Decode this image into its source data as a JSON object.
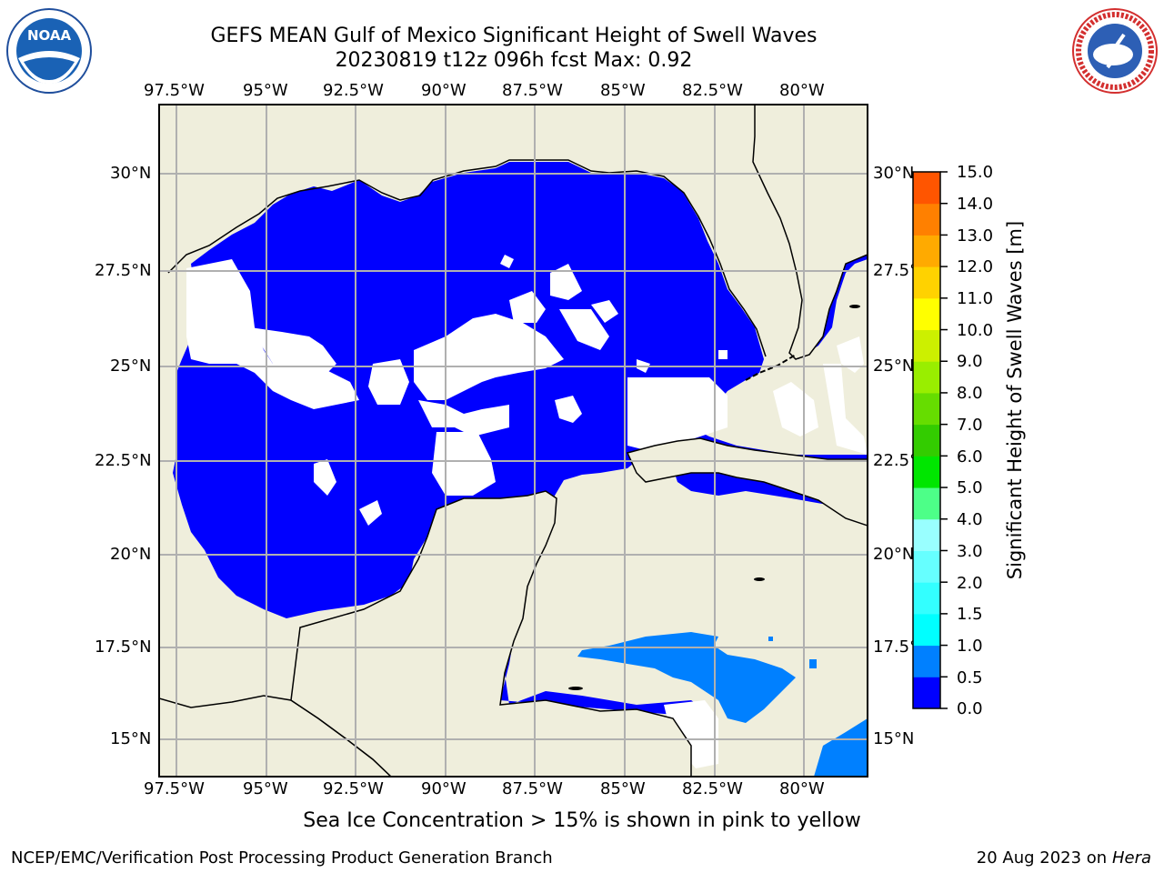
{
  "title": {
    "line1": "GEFS MEAN Gulf of Mexico Significant Height of Swell Waves",
    "line2": "20230819 t12z 096h fcst   Max: 0.92"
  },
  "map": {
    "lon_labels": [
      "97.5°W",
      "95°W",
      "92.5°W",
      "90°W",
      "87.5°W",
      "85°W",
      "82.5°W",
      "80°W"
    ],
    "lat_labels": [
      "30°N",
      "27.5°N",
      "25°N",
      "22.5°N",
      "20°N",
      "17.5°N",
      "15°N"
    ],
    "colors": {
      "land": "#efeedc",
      "water_low": "#0000ff",
      "water_mid": "#0080ff",
      "grid": "#b0b0b0"
    }
  },
  "colorbar": {
    "label": "Significant Height of Swell Waves [m]",
    "ticks": [
      "15.0",
      "14.0",
      "13.0",
      "12.0",
      "11.0",
      "10.0",
      "9.0",
      "8.0",
      "7.0",
      "6.0",
      "5.0",
      "4.0",
      "3.0",
      "2.0",
      "1.5",
      "1.0",
      "0.5",
      "0.0"
    ],
    "colors": [
      "#0000ff",
      "#0080ff",
      "#00ffff",
      "#33ffff",
      "#66ffff",
      "#99ffff",
      "#4dff88",
      "#00e600",
      "#33cc00",
      "#66dd00",
      "#99ee00",
      "#ccf000",
      "#ffff00",
      "#ffd200",
      "#ffaa00",
      "#ff8000",
      "#ff5500",
      "#ff2a00",
      "#ff0000"
    ]
  },
  "note": "Sea Ice Concentration > 15% is shown in pink to yellow",
  "footer": {
    "left": "NCEP/EMC/Verification Post Processing Product Generation Branch",
    "date": "20 Aug 2023 on",
    "machine": "Hera"
  },
  "logos": {
    "left": "NOAA",
    "right": "NATIONAL WEATHER SERVICE"
  }
}
